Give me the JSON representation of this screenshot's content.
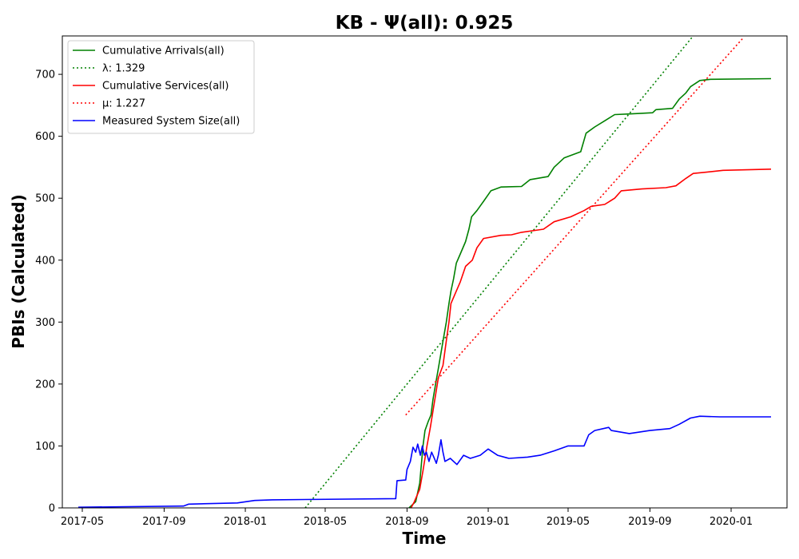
{
  "chart_data": {
    "type": "line",
    "title": "KB -  Ψ(all): 0.925",
    "xlabel": "Time",
    "ylabel": "PBIs (Calculated)",
    "xlim": [
      "2017-04-01",
      "2020-03-25"
    ],
    "ylim": [
      0,
      762
    ],
    "x_ticks": [
      "2017-05",
      "2017-09",
      "2018-01",
      "2018-05",
      "2018-09",
      "2019-01",
      "2019-05",
      "2019-09",
      "2020-01"
    ],
    "y_ticks": [
      0,
      100,
      200,
      300,
      400,
      500,
      600,
      700
    ],
    "grid": false,
    "legend_position": "top-left",
    "series": [
      {
        "name": "Cumulative Arrivals(all)",
        "color": "#008000",
        "style": "solid",
        "points": [
          [
            "2018-09-04",
            0
          ],
          [
            "2018-09-14",
            10
          ],
          [
            "2018-09-20",
            40
          ],
          [
            "2018-09-25",
            100
          ],
          [
            "2018-09-28",
            125
          ],
          [
            "2018-10-03",
            140
          ],
          [
            "2018-10-07",
            150
          ],
          [
            "2018-10-10",
            175
          ],
          [
            "2018-10-14",
            200
          ],
          [
            "2018-10-18",
            225
          ],
          [
            "2018-10-22",
            250
          ],
          [
            "2018-10-26",
            275
          ],
          [
            "2018-10-30",
            300
          ],
          [
            "2018-11-03",
            330
          ],
          [
            "2018-11-06",
            350
          ],
          [
            "2018-11-10",
            370
          ],
          [
            "2018-11-14",
            395
          ],
          [
            "2018-11-20",
            410
          ],
          [
            "2018-11-28",
            430
          ],
          [
            "2018-12-03",
            450
          ],
          [
            "2018-12-07",
            470
          ],
          [
            "2018-12-15",
            480
          ],
          [
            "2018-12-25",
            495
          ],
          [
            "2019-01-05",
            512
          ],
          [
            "2019-01-20",
            518
          ],
          [
            "2019-02-20",
            519
          ],
          [
            "2019-03-05",
            530
          ],
          [
            "2019-04-01",
            535
          ],
          [
            "2019-04-10",
            550
          ],
          [
            "2019-04-25",
            565
          ],
          [
            "2019-05-20",
            575
          ],
          [
            "2019-05-28",
            605
          ],
          [
            "2019-06-10",
            615
          ],
          [
            "2019-06-25",
            625
          ],
          [
            "2019-07-10",
            635
          ],
          [
            "2019-08-01",
            636
          ],
          [
            "2019-09-05",
            638
          ],
          [
            "2019-09-10",
            643
          ],
          [
            "2019-10-05",
            645
          ],
          [
            "2019-10-15",
            660
          ],
          [
            "2019-10-25",
            670
          ],
          [
            "2019-11-01",
            680
          ],
          [
            "2019-11-15",
            690
          ],
          [
            "2019-12-01",
            692
          ],
          [
            "2020-03-01",
            693
          ]
        ]
      },
      {
        "name": "λ: 1.329",
        "color": "#008000",
        "style": "dotted",
        "points": [
          [
            "2018-04-01",
            0
          ],
          [
            "2019-11-05",
            762
          ]
        ]
      },
      {
        "name": "Cumulative Services(all)",
        "color": "#ff0000",
        "style": "solid",
        "points": [
          [
            "2018-09-07",
            0
          ],
          [
            "2018-09-12",
            10
          ],
          [
            "2018-09-16",
            20
          ],
          [
            "2018-09-20",
            30
          ],
          [
            "2018-09-25",
            60
          ],
          [
            "2018-10-01",
            100
          ],
          [
            "2018-10-06",
            130
          ],
          [
            "2018-10-12",
            170
          ],
          [
            "2018-10-18",
            210
          ],
          [
            "2018-10-25",
            230
          ],
          [
            "2018-10-30",
            270
          ],
          [
            "2018-11-03",
            300
          ],
          [
            "2018-11-06",
            330
          ],
          [
            "2018-11-12",
            345
          ],
          [
            "2018-11-20",
            365
          ],
          [
            "2018-11-28",
            390
          ],
          [
            "2018-12-08",
            400
          ],
          [
            "2018-12-15",
            420
          ],
          [
            "2018-12-25",
            435
          ],
          [
            "2019-01-20",
            440
          ],
          [
            "2019-02-05",
            441
          ],
          [
            "2019-02-20",
            445
          ],
          [
            "2019-03-25",
            450
          ],
          [
            "2019-04-10",
            462
          ],
          [
            "2019-05-05",
            470
          ],
          [
            "2019-05-25",
            480
          ],
          [
            "2019-06-05",
            487
          ],
          [
            "2019-06-25",
            490
          ],
          [
            "2019-07-10",
            500
          ],
          [
            "2019-07-20",
            512
          ],
          [
            "2019-08-20",
            515
          ],
          [
            "2019-09-25",
            517
          ],
          [
            "2019-10-10",
            520
          ],
          [
            "2019-10-25",
            532
          ],
          [
            "2019-11-05",
            540
          ],
          [
            "2019-11-25",
            542
          ],
          [
            "2019-12-20",
            545
          ],
          [
            "2020-03-01",
            547
          ]
        ]
      },
      {
        "name": "μ: 1.227",
        "color": "#ff0000",
        "style": "dotted",
        "points": [
          [
            "2018-08-30",
            150
          ],
          [
            "2020-01-20",
            760
          ]
        ]
      },
      {
        "name": "Measured System Size(all)",
        "color": "#0000ff",
        "style": "solid",
        "points": [
          [
            "2017-04-25",
            1
          ],
          [
            "2017-09-30",
            3
          ],
          [
            "2017-10-08",
            6
          ],
          [
            "2017-12-20",
            8
          ],
          [
            "2018-01-15",
            12
          ],
          [
            "2018-02-10",
            13
          ],
          [
            "2018-08-15",
            15
          ],
          [
            "2018-08-17",
            44
          ],
          [
            "2018-08-30",
            45
          ],
          [
            "2018-09-01",
            62
          ],
          [
            "2018-09-06",
            75
          ],
          [
            "2018-09-10",
            98
          ],
          [
            "2018-09-14",
            90
          ],
          [
            "2018-09-17",
            103
          ],
          [
            "2018-09-21",
            85
          ],
          [
            "2018-09-24",
            100
          ],
          [
            "2018-09-27",
            85
          ],
          [
            "2018-09-30",
            90
          ],
          [
            "2018-10-04",
            75
          ],
          [
            "2018-10-08",
            90
          ],
          [
            "2018-10-12",
            80
          ],
          [
            "2018-10-15",
            72
          ],
          [
            "2018-10-18",
            85
          ],
          [
            "2018-10-22",
            110
          ],
          [
            "2018-10-25",
            90
          ],
          [
            "2018-10-28",
            75
          ],
          [
            "2018-11-05",
            80
          ],
          [
            "2018-11-15",
            70
          ],
          [
            "2018-11-25",
            85
          ],
          [
            "2018-12-05",
            80
          ],
          [
            "2018-12-20",
            85
          ],
          [
            "2019-01-01",
            95
          ],
          [
            "2019-01-15",
            85
          ],
          [
            "2019-02-01",
            80
          ],
          [
            "2019-03-01",
            82
          ],
          [
            "2019-03-20",
            85
          ],
          [
            "2019-04-10",
            92
          ],
          [
            "2019-05-01",
            100
          ],
          [
            "2019-05-25",
            100
          ],
          [
            "2019-06-01",
            118
          ],
          [
            "2019-06-10",
            125
          ],
          [
            "2019-07-01",
            130
          ],
          [
            "2019-07-05",
            125
          ],
          [
            "2019-08-01",
            120
          ],
          [
            "2019-09-01",
            125
          ],
          [
            "2019-10-01",
            128
          ],
          [
            "2019-10-15",
            135
          ],
          [
            "2019-11-01",
            145
          ],
          [
            "2019-11-15",
            148
          ],
          [
            "2019-12-15",
            147
          ],
          [
            "2020-03-01",
            147
          ]
        ]
      }
    ]
  }
}
